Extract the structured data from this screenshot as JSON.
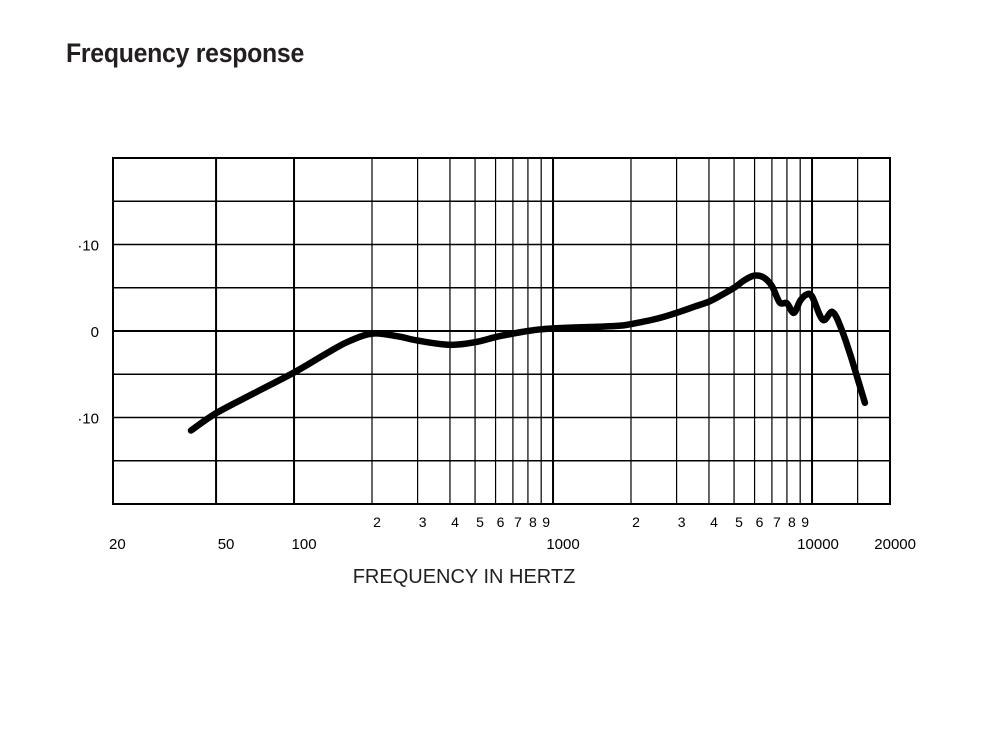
{
  "page": {
    "title": "Frequency response"
  },
  "chart_data": {
    "type": "line",
    "title": "Frequency response",
    "xlabel": "FREQUENCY IN HERTZ",
    "ylabel": "",
    "x_scale": "log",
    "xlim": [
      20,
      20000
    ],
    "ylim": [
      -20,
      20
    ],
    "grid": true,
    "x_tick_labels_major": [
      {
        "value": 20,
        "label": "20"
      },
      {
        "value": 50,
        "label": "50"
      },
      {
        "value": 100,
        "label": "100"
      },
      {
        "value": 1000,
        "label": "1000"
      },
      {
        "value": 10000,
        "label": "10000"
      },
      {
        "value": 20000,
        "label": "20000"
      }
    ],
    "x_tick_labels_minor": [
      {
        "value": 200,
        "label": "2"
      },
      {
        "value": 300,
        "label": "3"
      },
      {
        "value": 400,
        "label": "4"
      },
      {
        "value": 500,
        "label": "5"
      },
      {
        "value": 600,
        "label": "6"
      },
      {
        "value": 700,
        "label": "7"
      },
      {
        "value": 800,
        "label": "8"
      },
      {
        "value": 900,
        "label": "9"
      },
      {
        "value": 2000,
        "label": "2"
      },
      {
        "value": 3000,
        "label": "3"
      },
      {
        "value": 4000,
        "label": "4"
      },
      {
        "value": 5000,
        "label": "5"
      },
      {
        "value": 6000,
        "label": "6"
      },
      {
        "value": 7000,
        "label": "7"
      },
      {
        "value": 8000,
        "label": "8"
      },
      {
        "value": 9000,
        "label": "9"
      }
    ],
    "x_gridlines": [
      50,
      100,
      200,
      300,
      400,
      500,
      600,
      700,
      800,
      900,
      1000,
      2000,
      3000,
      4000,
      5000,
      6000,
      7000,
      8000,
      9000,
      10000,
      15000
    ],
    "y_gridlines": [
      -15,
      -10,
      -5,
      0,
      5,
      10,
      15
    ],
    "y_tick_labels": [
      {
        "value": 10,
        "label": "·10"
      },
      {
        "value": 0,
        "label": "0"
      },
      {
        "value": -10,
        "label": "·10"
      }
    ],
    "series": [
      {
        "color": "#000000",
        "x": [
          40,
          50,
          70,
          100,
          130,
          160,
          200,
          250,
          300,
          400,
          500,
          600,
          700,
          800,
          900,
          1000,
          1200,
          1500,
          1800,
          2000,
          2500,
          3000,
          3500,
          4000,
          4500,
          5000,
          5500,
          6000,
          6500,
          7000,
          7500,
          8000,
          8500,
          9000,
          9500,
          10000,
          11000,
          12000,
          13000,
          14000,
          15000,
          16000
        ],
        "y": [
          -11.5,
          -9.5,
          -7.2,
          -4.8,
          -2.8,
          -1.3,
          -0.3,
          -0.6,
          -1.1,
          -1.6,
          -1.3,
          -0.7,
          -0.3,
          0,
          0.2,
          0.3,
          0.4,
          0.5,
          0.6,
          0.8,
          1.4,
          2.1,
          2.8,
          3.4,
          4.2,
          5.0,
          5.9,
          6.4,
          6.2,
          5.2,
          3.3,
          3.2,
          2.1,
          3.5,
          4.2,
          4.0,
          1.3,
          2.2,
          0.2,
          -2.6,
          -5.5,
          -8.3
        ]
      }
    ]
  }
}
